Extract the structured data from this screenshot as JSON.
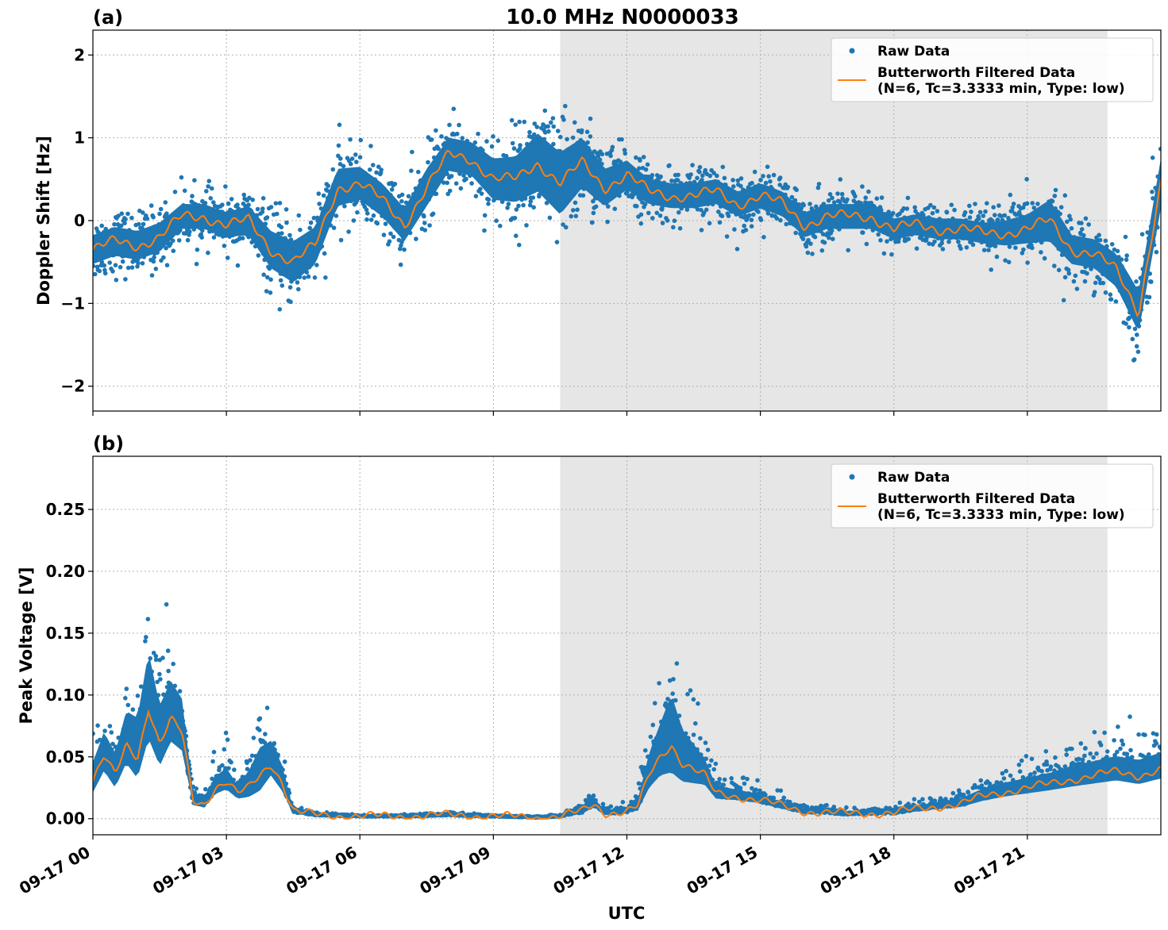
{
  "chart_data": [
    {
      "type": "scatter",
      "panel_label": "(a)",
      "title": "10.0 MHz N0000033",
      "ylabel": "Doppler Shift [Hz]",
      "xlabel": "",
      "ylim": [
        -2.3,
        2.3
      ],
      "yticks": [
        -2,
        -1,
        0,
        1,
        2
      ],
      "ytick_labels": [
        "−2",
        "−1",
        "0",
        "1",
        "2"
      ],
      "xlim_hours": [
        0,
        24
      ],
      "xticks_hours": [
        0,
        3,
        6,
        9,
        12,
        15,
        18,
        21
      ],
      "shaded_span_hours": [
        10.5,
        22.8
      ],
      "grid": true,
      "legend_position": "top-right",
      "legend": [
        {
          "label": "Raw Data",
          "marker": "dot",
          "color": "#1f77b4"
        },
        {
          "label": "Butterworth Filtered Data",
          "label2": "(N=6, Tc=3.3333 min, Type: low)",
          "marker": "line",
          "color": "#ff7f0e"
        }
      ],
      "series": [
        {
          "name": "Butterworth Filtered Data",
          "color": "#ff7f0e",
          "x_hours": [
            0,
            0.5,
            1,
            1.5,
            2,
            2.5,
            3,
            3.5,
            4,
            4.5,
            5,
            5.5,
            6,
            6.5,
            7,
            7.5,
            8,
            8.5,
            9,
            9.5,
            10,
            10.5,
            11,
            11.5,
            12,
            12.5,
            13,
            13.5,
            14,
            14.5,
            15,
            15.5,
            16,
            16.5,
            17,
            17.5,
            18,
            18.5,
            19,
            19.5,
            20,
            20.5,
            21,
            21.5,
            22,
            22.5,
            23,
            23.5,
            24
          ],
          "y": [
            -0.35,
            -0.25,
            -0.3,
            -0.2,
            0.05,
            0.05,
            -0.05,
            0.0,
            -0.35,
            -0.5,
            -0.3,
            0.4,
            0.45,
            0.25,
            -0.05,
            0.4,
            0.8,
            0.75,
            0.5,
            0.5,
            0.7,
            0.45,
            0.7,
            0.4,
            0.55,
            0.35,
            0.3,
            0.3,
            0.35,
            0.2,
            0.3,
            0.2,
            -0.05,
            0.05,
            0.05,
            0.05,
            -0.1,
            -0.05,
            -0.1,
            -0.1,
            -0.15,
            -0.15,
            -0.1,
            0.0,
            -0.35,
            -0.4,
            -0.6,
            -1.1,
            0.45
          ]
        },
        {
          "name": "Raw Data",
          "color": "#1f77b4",
          "spread": [
            0.35,
            0.35,
            0.35,
            0.35,
            0.3,
            0.3,
            0.3,
            0.35,
            0.45,
            0.5,
            0.45,
            0.45,
            0.4,
            0.4,
            0.4,
            0.45,
            0.4,
            0.4,
            0.5,
            0.55,
            0.7,
            0.75,
            0.6,
            0.45,
            0.35,
            0.3,
            0.3,
            0.3,
            0.3,
            0.3,
            0.3,
            0.3,
            0.3,
            0.3,
            0.3,
            0.3,
            0.25,
            0.25,
            0.25,
            0.25,
            0.25,
            0.3,
            0.35,
            0.5,
            0.35,
            0.35,
            0.4,
            0.5,
            0.6
          ]
        }
      ]
    },
    {
      "type": "scatter",
      "panel_label": "(b)",
      "title": "",
      "ylabel": "Peak Voltage [V]",
      "xlabel": "UTC",
      "ylim": [
        -0.013,
        0.293
      ],
      "yticks": [
        0.0,
        0.05,
        0.1,
        0.15,
        0.2,
        0.25
      ],
      "ytick_labels": [
        "0.00",
        "0.05",
        "0.10",
        "0.15",
        "0.20",
        "0.25"
      ],
      "xlim_hours": [
        0,
        24
      ],
      "xticks_hours": [
        0,
        3,
        6,
        9,
        12,
        15,
        18,
        21
      ],
      "xtick_labels": [
        "09-17 00",
        "09-17 03",
        "09-17 06",
        "09-17 09",
        "09-17 12",
        "09-17 15",
        "09-17 18",
        "09-17 21"
      ],
      "shaded_span_hours": [
        10.5,
        22.8
      ],
      "grid": true,
      "legend_position": "top-right",
      "legend": [
        {
          "label": "Raw Data",
          "marker": "dot",
          "color": "#1f77b4"
        },
        {
          "label": "Butterworth Filtered Data",
          "label2": "(N=6, Tc=3.3333 min, Type: low)",
          "marker": "line",
          "color": "#ff7f0e"
        }
      ],
      "series": [
        {
          "name": "Butterworth Filtered Data",
          "color": "#ff7f0e",
          "x_hours": [
            0,
            0.25,
            0.5,
            0.75,
            1.0,
            1.25,
            1.5,
            1.75,
            2.0,
            2.25,
            2.5,
            2.75,
            3.0,
            3.25,
            3.5,
            3.75,
            4.0,
            4.25,
            4.5,
            5,
            6,
            7,
            8,
            9,
            10,
            10.5,
            11,
            11.25,
            11.5,
            11.75,
            12,
            12.25,
            12.5,
            12.75,
            13.0,
            13.25,
            13.5,
            13.75,
            14.0,
            14.5,
            15,
            15.5,
            16,
            17,
            18,
            19,
            19.5,
            20,
            20.5,
            21,
            21.5,
            22,
            22.5,
            23,
            23.5,
            24
          ],
          "y": [
            0.03,
            0.05,
            0.035,
            0.06,
            0.05,
            0.09,
            0.06,
            0.08,
            0.07,
            0.015,
            0.012,
            0.025,
            0.03,
            0.02,
            0.025,
            0.035,
            0.045,
            0.03,
            0.006,
            0.003,
            0.002,
            0.002,
            0.003,
            0.002,
            0.001,
            0.002,
            0.006,
            0.012,
            0.005,
            0.005,
            0.006,
            0.01,
            0.035,
            0.05,
            0.06,
            0.045,
            0.04,
            0.035,
            0.02,
            0.018,
            0.015,
            0.01,
            0.006,
            0.004,
            0.005,
            0.01,
            0.012,
            0.018,
            0.022,
            0.025,
            0.028,
            0.032,
            0.035,
            0.038,
            0.035,
            0.04
          ]
        },
        {
          "name": "Raw Data",
          "color": "#1f77b4",
          "spread": [
            0.035,
            0.045,
            0.04,
            0.06,
            0.07,
            0.1,
            0.07,
            0.07,
            0.06,
            0.015,
            0.012,
            0.02,
            0.025,
            0.015,
            0.03,
            0.05,
            0.04,
            0.03,
            0.004,
            0.002,
            0.001,
            0.001,
            0.002,
            0.001,
            0.001,
            0.002,
            0.008,
            0.01,
            0.004,
            0.004,
            0.006,
            0.012,
            0.04,
            0.06,
            0.09,
            0.06,
            0.045,
            0.03,
            0.015,
            0.012,
            0.01,
            0.008,
            0.005,
            0.004,
            0.005,
            0.008,
            0.01,
            0.014,
            0.016,
            0.018,
            0.02,
            0.024,
            0.026,
            0.028,
            0.028,
            0.03
          ]
        }
      ]
    }
  ]
}
